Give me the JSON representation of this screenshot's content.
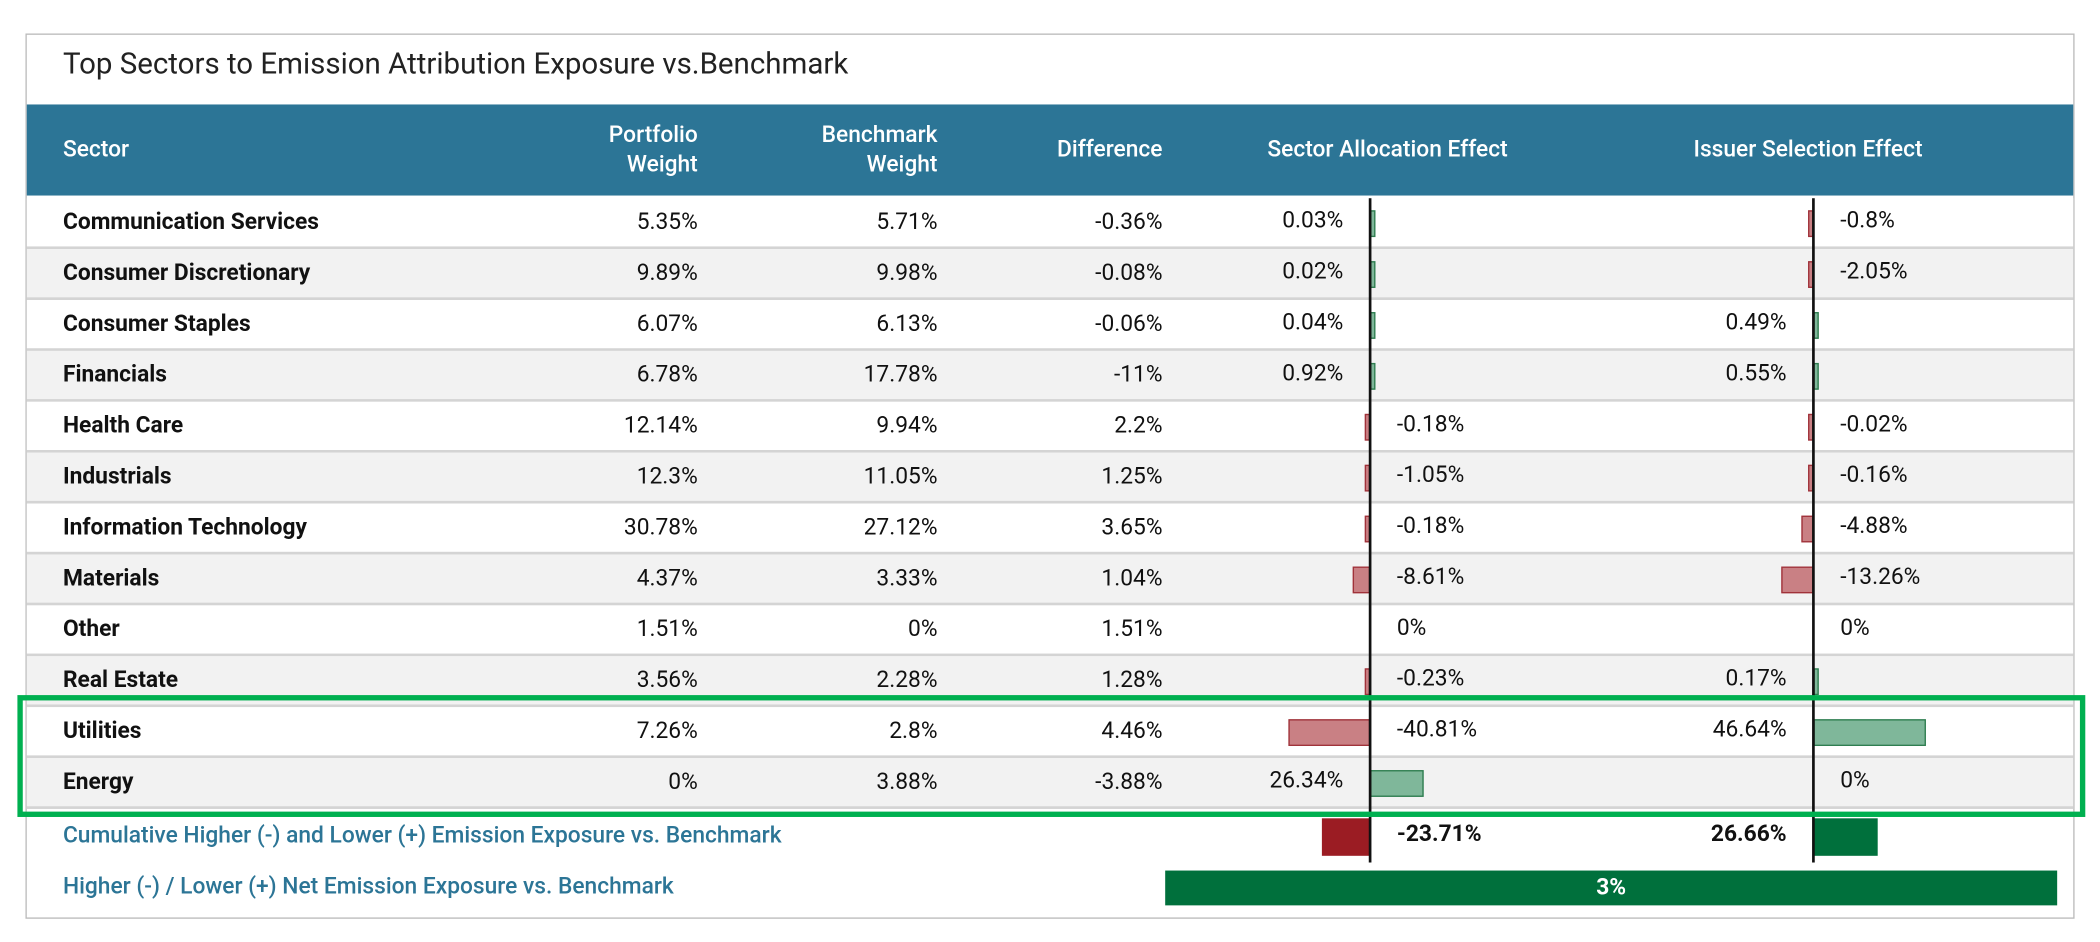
{
  "title": "Top Sectors to Emission Attribution Exposure vs.Benchmark",
  "table": {
    "columns": [
      "Sector",
      "Portfolio Weight",
      "Benchmark Weight",
      "Difference",
      "Sector Allocation Effect",
      "Issuer Selection Effect"
    ],
    "rows": [
      [
        "Communication Services",
        "5.35%",
        "5.71%",
        "-0.36%",
        {
          "value": 0.03,
          "label": "0.03%"
        },
        {
          "value": -0.8,
          "label": "-0.8%"
        }
      ],
      [
        "Consumer Discretionary",
        "9.89%",
        "9.98%",
        "-0.08%",
        {
          "value": 0.02,
          "label": "0.02%"
        },
        {
          "value": -2.05,
          "label": "-2.05%"
        }
      ],
      [
        "Consumer Staples",
        "6.07%",
        "6.13%",
        "-0.06%",
        {
          "value": 0.04,
          "label": "0.04%"
        },
        {
          "value": 0.49,
          "label": "0.49%"
        }
      ],
      [
        "Financials",
        "6.78%",
        "17.78%",
        "-11%",
        {
          "value": 0.92,
          "label": "0.92%"
        },
        {
          "value": 0.55,
          "label": "0.55%"
        }
      ],
      [
        "Health Care",
        "12.14%",
        "9.94%",
        "2.2%",
        {
          "value": -0.18,
          "label": "-0.18%"
        },
        {
          "value": -0.02,
          "label": "-0.02%"
        }
      ],
      [
        "Industrials",
        "12.3%",
        "11.05%",
        "1.25%",
        {
          "value": -1.05,
          "label": "-1.05%"
        },
        {
          "value": -0.16,
          "label": "-0.16%"
        }
      ],
      [
        "Information Technology",
        "30.78%",
        "27.12%",
        "3.65%",
        {
          "value": -0.18,
          "label": "-0.18%"
        },
        {
          "value": -4.88,
          "label": "-4.88%"
        }
      ],
      [
        "Materials",
        "4.37%",
        "3.33%",
        "1.04%",
        {
          "value": -8.61,
          "label": "-8.61%"
        },
        {
          "value": -13.26,
          "label": "-13.26%"
        }
      ],
      [
        "Other",
        "1.51%",
        "0%",
        "1.51%",
        {
          "value": 0,
          "label": "0%"
        },
        {
          "value": 0,
          "label": "0%"
        }
      ],
      [
        "Real Estate",
        "3.56%",
        "2.28%",
        "1.28%",
        {
          "value": -0.23,
          "label": "-0.23%"
        },
        {
          "value": 0.17,
          "label": "0.17%"
        }
      ],
      [
        "Utilities",
        "7.26%",
        "2.8%",
        "4.46%",
        {
          "value": -40.81,
          "label": "-40.81%"
        },
        {
          "value": 46.64,
          "label": "46.64%"
        }
      ],
      [
        "Energy",
        "0%",
        "3.88%",
        "-3.88%",
        {
          "value": 26.34,
          "label": "26.34%"
        },
        {
          "value": 0,
          "label": "0%"
        }
      ]
    ]
  },
  "cumulative": {
    "label": "Cumulative Higher (-) and Lower (+) Emission Exposure vs. Benchmark",
    "allocation": {
      "value": -23.71,
      "label": "-23.71%"
    },
    "issuer": {
      "value": 26.66,
      "label": "26.66%"
    }
  },
  "net": {
    "label": "Higher (-) / Lower (+) Net Emission Exposure vs. Benchmark",
    "value": "3%"
  }
}
